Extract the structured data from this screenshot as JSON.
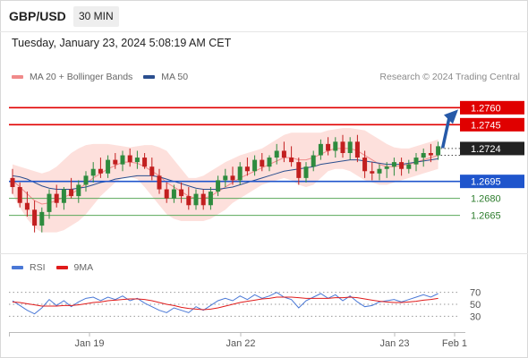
{
  "header": {
    "symbol": "GBP/USD",
    "timeframe": "30 MIN"
  },
  "datetime": "Tuesday, January 23, 2024 5:08:19 AM CET",
  "legend": [
    {
      "label": "MA 20 + Bollinger Bands",
      "color": "#f08a8a"
    },
    {
      "label": "MA 50",
      "color": "#2b4f8f"
    }
  ],
  "credit": "Research © 2024 Trading Central",
  "rsi_legend": [
    {
      "label": "RSI",
      "color": "#4a78d6"
    },
    {
      "label": "9MA",
      "color": "#e01b1b"
    }
  ],
  "chart_data": {
    "type": "candlestick",
    "x_labels": [
      "Jan 19",
      "Jan 22",
      "Jan 23",
      "Feb 1"
    ],
    "y_range": [
      1.263,
      1.278
    ],
    "current_price": "1.2724",
    "resistances": [
      "1.2760",
      "1.2745"
    ],
    "pivot": "1.2695",
    "supports": [
      "1.2680",
      "1.2665"
    ],
    "colors": {
      "up": "#2e8b3e",
      "down": "#c21f1f",
      "resistance": "#e00000",
      "pivot": "#1f55cc",
      "support": "#5aa85a",
      "arrow": "#2659a8",
      "band": "#fde0dc",
      "ma20": "#f08a8a",
      "ma50": "#2b4f8f"
    },
    "candles": [
      [
        1.2698,
        1.2706,
        1.2684,
        1.269
      ],
      [
        1.269,
        1.2694,
        1.2672,
        1.2676
      ],
      [
        1.2676,
        1.2686,
        1.2664,
        1.267
      ],
      [
        1.267,
        1.2678,
        1.265,
        1.2656
      ],
      [
        1.2656,
        1.2672,
        1.265,
        1.2668
      ],
      [
        1.2668,
        1.2688,
        1.2662,
        1.2684
      ],
      [
        1.2684,
        1.2692,
        1.2672,
        1.2676
      ],
      [
        1.2676,
        1.269,
        1.267,
        1.2688
      ],
      [
        1.2688,
        1.2698,
        1.268,
        1.2682
      ],
      [
        1.2682,
        1.2696,
        1.2676,
        1.2692
      ],
      [
        1.2692,
        1.2704,
        1.2686,
        1.27
      ],
      [
        1.27,
        1.2712,
        1.2694,
        1.2706
      ],
      [
        1.2706,
        1.2716,
        1.2698,
        1.2702
      ],
      [
        1.2702,
        1.2718,
        1.2698,
        1.2714
      ],
      [
        1.2714,
        1.272,
        1.2706,
        1.271
      ],
      [
        1.271,
        1.2722,
        1.2704,
        1.2718
      ],
      [
        1.2718,
        1.2724,
        1.2708,
        1.2712
      ],
      [
        1.2712,
        1.2722,
        1.2706,
        1.2716
      ],
      [
        1.2716,
        1.272,
        1.2706,
        1.2708
      ],
      [
        1.2708,
        1.2716,
        1.2696,
        1.27
      ],
      [
        1.27,
        1.2706,
        1.2684,
        1.2688
      ],
      [
        1.2688,
        1.2694,
        1.2676,
        1.268
      ],
      [
        1.268,
        1.2692,
        1.2676,
        1.2688
      ],
      [
        1.2688,
        1.2694,
        1.2676,
        1.2682
      ],
      [
        1.2682,
        1.269,
        1.267,
        1.2674
      ],
      [
        1.2674,
        1.2688,
        1.267,
        1.2684
      ],
      [
        1.2684,
        1.2688,
        1.267,
        1.2674
      ],
      [
        1.2674,
        1.269,
        1.267,
        1.2686
      ],
      [
        1.2686,
        1.27,
        1.2682,
        1.2696
      ],
      [
        1.2696,
        1.2706,
        1.269,
        1.27
      ],
      [
        1.27,
        1.2708,
        1.2692,
        1.2696
      ],
      [
        1.2696,
        1.2712,
        1.2692,
        1.2708
      ],
      [
        1.2708,
        1.2716,
        1.27,
        1.2704
      ],
      [
        1.2704,
        1.2718,
        1.27,
        1.2714
      ],
      [
        1.2714,
        1.272,
        1.2704,
        1.2708
      ],
      [
        1.2708,
        1.2718,
        1.2704,
        1.2716
      ],
      [
        1.2716,
        1.2728,
        1.271,
        1.2722
      ],
      [
        1.2722,
        1.273,
        1.2712,
        1.2716
      ],
      [
        1.2716,
        1.2726,
        1.2708,
        1.2712
      ],
      [
        1.2712,
        1.2716,
        1.2692,
        1.2698
      ],
      [
        1.2698,
        1.2712,
        1.2694,
        1.2708
      ],
      [
        1.2708,
        1.2722,
        1.2704,
        1.2718
      ],
      [
        1.2718,
        1.2732,
        1.2714,
        1.2728
      ],
      [
        1.2728,
        1.2734,
        1.2718,
        1.2722
      ],
      [
        1.2722,
        1.2734,
        1.2716,
        1.273
      ],
      [
        1.273,
        1.2736,
        1.2716,
        1.272
      ],
      [
        1.272,
        1.2734,
        1.2714,
        1.273
      ],
      [
        1.273,
        1.2736,
        1.2712,
        1.2716
      ],
      [
        1.2716,
        1.2722,
        1.2698,
        1.2704
      ],
      [
        1.2704,
        1.2712,
        1.2696,
        1.2702
      ],
      [
        1.2702,
        1.271,
        1.2696,
        1.2706
      ],
      [
        1.2706,
        1.2712,
        1.2698,
        1.2708
      ],
      [
        1.2708,
        1.2716,
        1.27,
        1.2712
      ],
      [
        1.2712,
        1.2716,
        1.27,
        1.2706
      ],
      [
        1.2706,
        1.2714,
        1.2702,
        1.271
      ],
      [
        1.271,
        1.272,
        1.2704,
        1.2716
      ],
      [
        1.2716,
        1.2724,
        1.2708,
        1.272
      ],
      [
        1.272,
        1.2728,
        1.2712,
        1.2718
      ],
      [
        1.2718,
        1.273,
        1.2714,
        1.2726
      ]
    ],
    "ma20": [
      1.2696,
      1.269,
      1.2684,
      1.2678,
      1.2675,
      1.2676,
      1.2678,
      1.2681,
      1.2684,
      1.2688,
      1.2693,
      1.2698,
      1.2702,
      1.2706,
      1.2709,
      1.2712,
      1.2712,
      1.2711,
      1.2708,
      1.2704,
      1.27,
      1.2694,
      1.269,
      1.2686,
      1.2682,
      1.268,
      1.268,
      1.2682,
      1.2686,
      1.269,
      1.2694,
      1.2698,
      1.2701,
      1.2704,
      1.2707,
      1.271,
      1.2713,
      1.2716,
      1.2716,
      1.2714,
      1.2714,
      1.2716,
      1.2719,
      1.2722,
      1.2724,
      1.2724,
      1.2724,
      1.2722,
      1.2718,
      1.2714,
      1.271,
      1.2708,
      1.2708,
      1.2709,
      1.271,
      1.2712,
      1.2714,
      1.2716,
      1.2718
    ],
    "band_upper": [
      1.271,
      1.2708,
      1.2706,
      1.2704,
      1.2702,
      1.2704,
      1.2708,
      1.2714,
      1.272,
      1.2724,
      1.2727,
      1.2728,
      1.2728,
      1.2728,
      1.2727,
      1.2726,
      1.2725,
      1.2726,
      1.2727,
      1.2727,
      1.2725,
      1.2722,
      1.2714,
      1.2706,
      1.2698,
      1.2698,
      1.27,
      1.2704,
      1.2708,
      1.2712,
      1.2715,
      1.2718,
      1.272,
      1.2722,
      1.2724,
      1.2728,
      1.2732,
      1.2736,
      1.2738,
      1.2738,
      1.2738,
      1.2738,
      1.2738,
      1.274,
      1.2741,
      1.2742,
      1.2742,
      1.2741,
      1.274,
      1.2736,
      1.2732,
      1.2728,
      1.2725,
      1.2724,
      1.2724,
      1.2726,
      1.2728,
      1.273,
      1.2732
    ],
    "band_lower": [
      1.2684,
      1.2672,
      1.2662,
      1.2654,
      1.265,
      1.265,
      1.265,
      1.2652,
      1.2656,
      1.266,
      1.2666,
      1.2674,
      1.2682,
      1.2688,
      1.2694,
      1.2698,
      1.2699,
      1.2697,
      1.269,
      1.2682,
      1.2674,
      1.2666,
      1.2662,
      1.266,
      1.266,
      1.266,
      1.266,
      1.2662,
      1.2666,
      1.267,
      1.2676,
      1.268,
      1.2684,
      1.2688,
      1.2692,
      1.2694,
      1.2696,
      1.2698,
      1.2696,
      1.2692,
      1.269,
      1.2692,
      1.2698,
      1.2704,
      1.2706,
      1.2706,
      1.2704,
      1.27,
      1.2696,
      1.2694,
      1.2692,
      1.2692,
      1.2694,
      1.2696,
      1.2698,
      1.27,
      1.2702,
      1.2704,
      1.2706
    ],
    "ma50": [
      1.27,
      1.2699,
      1.2697,
      1.2694,
      1.2691,
      1.2689,
      1.2688,
      1.2688,
      1.2688,
      1.2689,
      1.269,
      1.2692,
      1.2694,
      1.2695,
      1.2697,
      1.2698,
      1.2699,
      1.27,
      1.27,
      1.27,
      1.2699,
      1.2697,
      1.2695,
      1.2693,
      1.2691,
      1.2689,
      1.2688,
      1.2688,
      1.2688,
      1.2689,
      1.269,
      1.2692,
      1.2694,
      1.2696,
      1.2698,
      1.27,
      1.2702,
      1.2704,
      1.2705,
      1.2706,
      1.2707,
      1.2708,
      1.271,
      1.2711,
      1.2712,
      1.2713,
      1.2714,
      1.2714,
      1.2713,
      1.2712,
      1.2711,
      1.271,
      1.271,
      1.271,
      1.2711,
      1.2712,
      1.2713,
      1.2714,
      1.2715
    ],
    "rsi": {
      "levels": [
        "70",
        "50",
        "30"
      ],
      "rsi": [
        56,
        48,
        40,
        34,
        44,
        58,
        48,
        56,
        46,
        54,
        60,
        62,
        56,
        62,
        58,
        64,
        56,
        60,
        52,
        46,
        40,
        36,
        44,
        40,
        36,
        46,
        40,
        48,
        56,
        60,
        56,
        64,
        58,
        66,
        60,
        64,
        70,
        62,
        58,
        44,
        56,
        62,
        68,
        60,
        66,
        56,
        64,
        54,
        46,
        48,
        54,
        56,
        58,
        54,
        58,
        62,
        66,
        62,
        68
      ],
      "ma9": [
        54,
        53,
        51,
        49,
        47,
        47,
        47,
        48,
        48,
        49,
        51,
        53,
        54,
        56,
        57,
        58,
        59,
        59,
        58,
        56,
        53,
        50,
        48,
        45,
        43,
        42,
        41,
        42,
        44,
        47,
        50,
        53,
        55,
        57,
        59,
        60,
        62,
        62,
        62,
        61,
        60,
        60,
        60,
        60,
        61,
        61,
        62,
        61,
        59,
        57,
        55,
        54,
        53,
        53,
        54,
        55,
        57,
        58,
        60
      ]
    }
  }
}
